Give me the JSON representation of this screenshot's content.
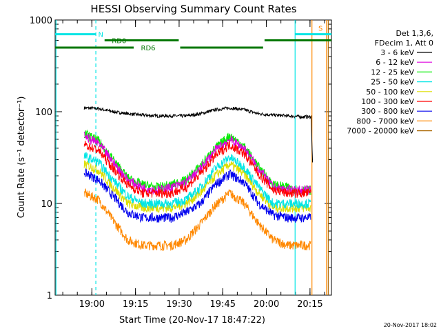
{
  "chart_data": {
    "type": "line",
    "title": "HESSI Observing Summary Count Rates",
    "xlabel": "Start Time (20-Nov-17 18:47:22)",
    "ylabel": "Count Rate (s⁻¹ detector⁻¹)",
    "yscale": "log",
    "ylim": [
      1,
      1000
    ],
    "xlim_minutes_after_start": [
      0,
      95
    ],
    "x_tick_labels": [
      "19:00",
      "19:15",
      "19:30",
      "19:45",
      "20:00",
      "20:15"
    ],
    "x_tick_minutes_after_start": [
      12.63,
      27.63,
      42.63,
      57.63,
      72.63,
      87.63
    ],
    "y_tick_labels": [
      "1",
      "10",
      "100",
      "1000"
    ],
    "y_tick_values": [
      1,
      10,
      100,
      1000
    ],
    "legend_header": [
      "Det 1,3,6,",
      "FDecim 1, Att 0"
    ],
    "footer": "20-Nov-2017 18:02",
    "series": [
      {
        "name": "3 - 6 keV",
        "color": "#000000",
        "x": [
          10,
          15,
          20,
          25,
          30,
          35,
          40,
          45,
          50,
          55,
          60,
          65,
          70,
          75,
          80,
          85,
          88,
          88.5
        ],
        "values": [
          110,
          108,
          100,
          95,
          92,
          90,
          90,
          90,
          95,
          105,
          110,
          105,
          95,
          92,
          90,
          88,
          88,
          28
        ]
      },
      {
        "name": "6 - 12 keV",
        "color": "#dd00dd",
        "x": [
          10,
          15,
          20,
          25,
          30,
          35,
          40,
          45,
          50,
          55,
          60,
          65,
          70,
          75,
          80,
          85,
          88
        ],
        "values": [
          55,
          45,
          28,
          18,
          15,
          14,
          15,
          17,
          24,
          38,
          50,
          40,
          24,
          15,
          14,
          14,
          14
        ]
      },
      {
        "name": "12 - 25 keV",
        "color": "#00ee00",
        "x": [
          10,
          15,
          20,
          25,
          30,
          35,
          40,
          45,
          50,
          55,
          60,
          65,
          70,
          75,
          80,
          85,
          88
        ],
        "values": [
          58,
          48,
          30,
          19,
          16,
          15,
          16,
          18,
          26,
          40,
          55,
          42,
          25,
          16,
          15,
          14,
          14
        ]
      },
      {
        "name": "25 - 50 keV",
        "color": "#00e5e5",
        "x": [
          10,
          15,
          20,
          25,
          30,
          35,
          40,
          45,
          50,
          55,
          60,
          65,
          70,
          75,
          80,
          85,
          88
        ],
        "values": [
          33,
          28,
          18,
          12,
          10,
          10,
          10,
          11,
          15,
          24,
          32,
          25,
          15,
          10,
          10,
          10,
          10
        ]
      },
      {
        "name": "50 - 100 keV",
        "color": "#dddd00",
        "x": [
          10,
          15,
          20,
          25,
          30,
          35,
          40,
          45,
          50,
          55,
          60,
          65,
          70,
          75,
          80,
          85,
          88
        ],
        "values": [
          27,
          23,
          15,
          10,
          9,
          9,
          9,
          10,
          13,
          20,
          27,
          21,
          13,
          9,
          9,
          9,
          9
        ]
      },
      {
        "name": "100 - 300 keV",
        "color": "#ff0000",
        "x": [
          10,
          15,
          20,
          25,
          30,
          35,
          40,
          45,
          50,
          55,
          60,
          65,
          70,
          75,
          80,
          85,
          88
        ],
        "values": [
          44,
          38,
          24,
          16,
          13,
          13,
          13,
          15,
          21,
          33,
          44,
          35,
          21,
          14,
          13,
          13,
          13
        ]
      },
      {
        "name": "300 - 800 keV",
        "color": "#0000ee",
        "x": [
          10,
          15,
          20,
          25,
          30,
          35,
          40,
          45,
          50,
          55,
          60,
          65,
          70,
          75,
          80,
          85,
          88
        ],
        "values": [
          22,
          18,
          12,
          8,
          7,
          7,
          7,
          8,
          10,
          16,
          21,
          17,
          10,
          7.5,
          7,
          7,
          7
        ]
      },
      {
        "name": "800 - 7000 keV",
        "color": "#ff8800",
        "x": [
          10,
          15,
          20,
          25,
          30,
          35,
          40,
          45,
          50,
          55,
          60,
          65,
          70,
          75,
          80,
          85,
          88
        ],
        "values": [
          13,
          11,
          6.5,
          4,
          3.5,
          3.5,
          3.5,
          4,
          6,
          9.5,
          13,
          10,
          6,
          4,
          3.5,
          3.5,
          3.5
        ]
      },
      {
        "name": "7000 - 20000 keV",
        "color": "#aa6600",
        "x": [],
        "values": []
      }
    ],
    "bars": [
      {
        "label": "N",
        "color": "#00e5e5",
        "y": 700,
        "segments": [
          [
            0,
            14
          ]
        ]
      },
      {
        "label": "",
        "color": "#00e5e5",
        "y": 700,
        "segments": [
          [
            82.5,
            95
          ]
        ]
      },
      {
        "label": "RD0",
        "color": "#007700",
        "y": 600,
        "segments": [
          [
            17,
            42.5
          ],
          [
            72,
            95
          ]
        ]
      },
      {
        "label": "RD6",
        "color": "#007700",
        "y": 500,
        "segments": [
          [
            0,
            27
          ],
          [
            43,
            71.5
          ]
        ]
      },
      {
        "label": "S",
        "color": "#ff8800",
        "y": 820,
        "segments": []
      }
    ],
    "vlines": [
      {
        "x": 0.3,
        "color": "#00e5e5",
        "dashed": false
      },
      {
        "x": 14,
        "color": "#00e5e5",
        "dashed": true
      },
      {
        "x": 82.5,
        "color": "#00e5e5",
        "dashed": false
      },
      {
        "x": 88.3,
        "color": "#ff8800",
        "dashed": false
      },
      {
        "x": 93.3,
        "color": "#ff8800",
        "dashed": false
      },
      {
        "x": 93.9,
        "color": "#aa6600",
        "dashed": false
      }
    ]
  }
}
